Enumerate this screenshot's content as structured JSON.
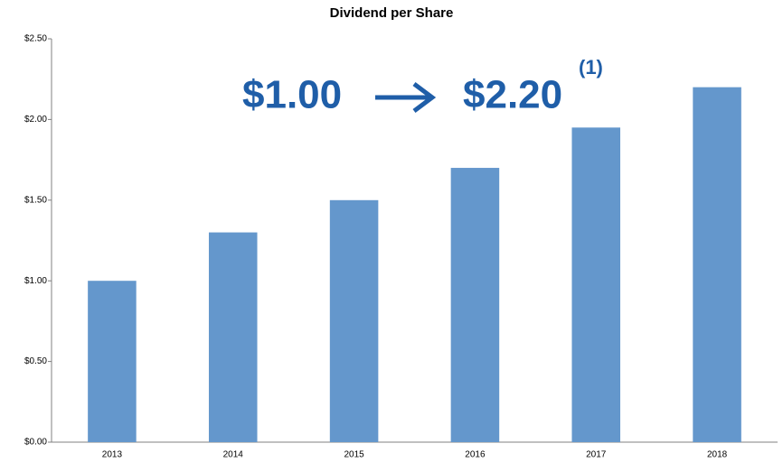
{
  "chart_data": {
    "type": "bar",
    "title": "Dividend per Share",
    "annotations": [
      "$1.00",
      "$2.20",
      "(1)"
    ],
    "categories": [
      "2013",
      "2014",
      "2015",
      "2016",
      "2017",
      "2018"
    ],
    "values": [
      1.0,
      1.3,
      1.5,
      1.7,
      1.95,
      2.2
    ],
    "color": "#6497cc",
    "ylim": [
      0,
      2.5
    ],
    "yticks": [
      {
        "value": 0,
        "label": "$0.00"
      },
      {
        "value": 0.5,
        "label": "$0.50"
      },
      {
        "value": 1,
        "label": "$1.00"
      },
      {
        "value": 1.5,
        "label": "$1.50"
      },
      {
        "value": 2,
        "label": "$2.00"
      },
      {
        "value": 2.5,
        "label": "$2.50"
      }
    ],
    "grid": false
  }
}
